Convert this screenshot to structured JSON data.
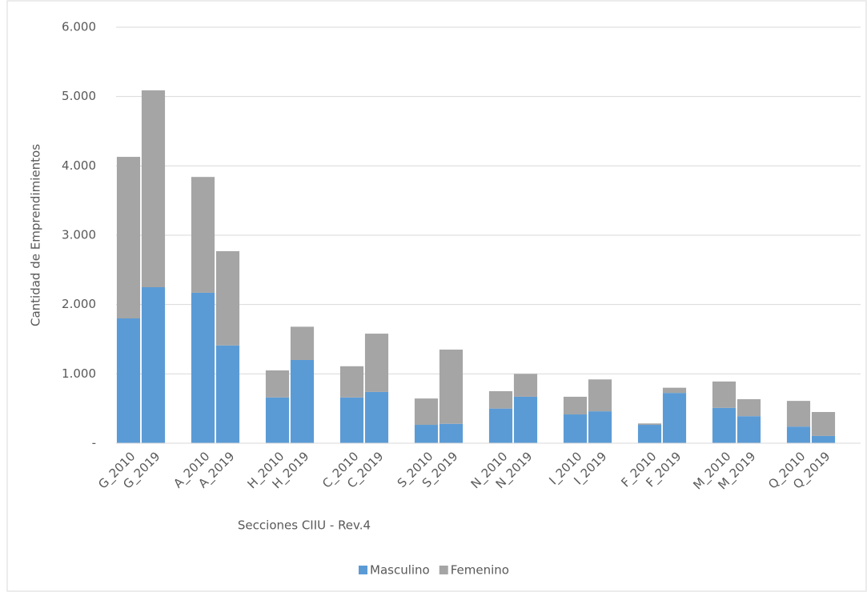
{
  "chart_data": {
    "type": "stacked_bar",
    "x_label": "Secciones CIIU - Rev.4",
    "y_label": "Cantidad de Emprendimientos",
    "categories": [
      "G_2010",
      "G_2019",
      null,
      "A_2010",
      "A_2019",
      null,
      "H_2010",
      "H_2019",
      null,
      "C_2010",
      "C_2019",
      null,
      "S_2010",
      "S_2019",
      null,
      "N_2010",
      "N_2019",
      null,
      "I_2010",
      "I_2019",
      null,
      "F_2010",
      "F_2019",
      null,
      "M_2010",
      "M_2019",
      null,
      "Q_2010",
      "Q_2019",
      null
    ],
    "series": [
      {
        "name": "Masculino",
        "color": "#5b9bd5",
        "values": [
          1800,
          2250,
          null,
          2170,
          1410,
          null,
          660,
          1200,
          null,
          660,
          740,
          null,
          265,
          280,
          null,
          500,
          670,
          null,
          415,
          460,
          null,
          265,
          725,
          null,
          510,
          390,
          null,
          240,
          105,
          null
        ]
      },
      {
        "name": "Femenino",
        "color": "#a5a5a5",
        "values": [
          2330,
          2840,
          null,
          1670,
          1360,
          null,
          390,
          480,
          null,
          450,
          840,
          null,
          380,
          1070,
          null,
          250,
          330,
          null,
          255,
          460,
          null,
          20,
          75,
          null,
          380,
          245,
          null,
          370,
          345,
          null
        ]
      }
    ],
    "ylim": [
      0,
      6000
    ],
    "yticks": [
      {
        "value": 0,
        "label": "-"
      },
      {
        "value": 1000,
        "label": "1.000"
      },
      {
        "value": 2000,
        "label": "2.000"
      },
      {
        "value": 3000,
        "label": "3.000"
      },
      {
        "value": 4000,
        "label": "4.000"
      },
      {
        "value": 5000,
        "label": "5.000"
      },
      {
        "value": 6000,
        "label": "6.000"
      }
    ],
    "grid": true,
    "legend": "bottom"
  }
}
